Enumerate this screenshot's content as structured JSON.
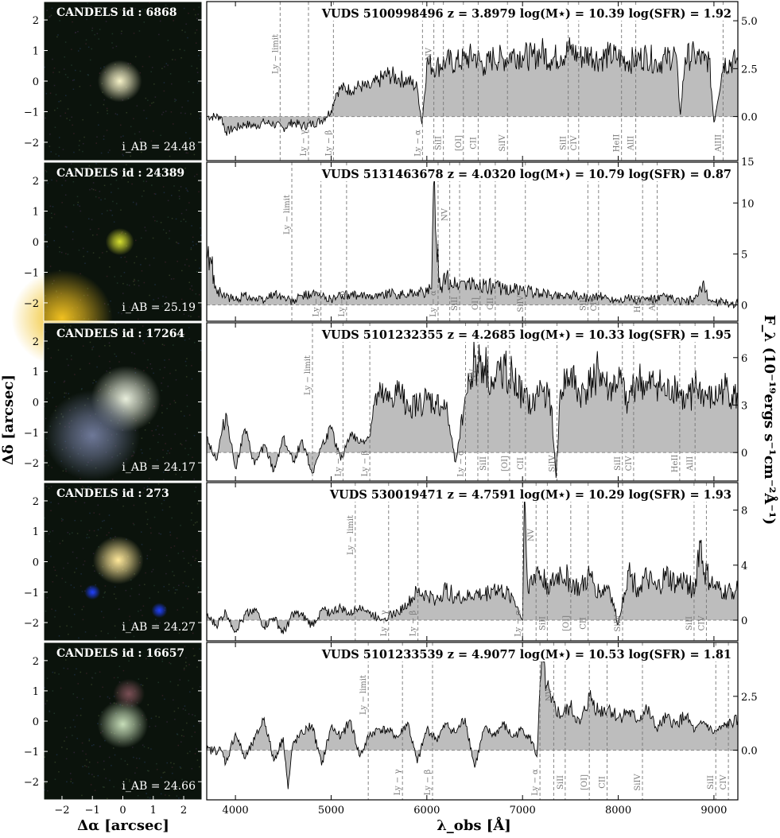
{
  "figure": {
    "image_ylabel": "Δδ [arcsec]",
    "image_xlabel": "Δα [arcsec]",
    "spec_xlabel": "λ_obs [Å]",
    "spec_ylabel": "F_λ (10⁻¹⁹ergs s⁻¹cm⁻²Å⁻¹)",
    "image_ticks": [
      "−2",
      "−1",
      "0",
      "1",
      "2"
    ],
    "spec_xticks": [
      "4000",
      "5000",
      "6000",
      "7000",
      "8000",
      "9000"
    ]
  },
  "chart_data": [
    {
      "type": "line",
      "panel": 1,
      "cutout": {
        "label": "CANDELS id :  6868",
        "mag": "i_AB = 24.48",
        "blobs": [
          {
            "dx": -0.1,
            "dy": 0.0,
            "size": 0.14,
            "color": "#f6f2c8"
          }
        ]
      },
      "title": "VUDS 5100998496  z = 3.8979   log(M⋆) = 10.39   log(SFR) = 1.92",
      "redshift": 3.8979,
      "ylim": [
        -2.3,
        6.0
      ],
      "yticks": [
        0.0,
        2.5,
        5.0
      ],
      "right_tick_top": "15",
      "xlim": [
        3700,
        9250
      ],
      "x": [
        3700,
        3850,
        3900,
        4000,
        4100,
        4200,
        4300,
        4400,
        4500,
        4600,
        4700,
        4800,
        4900,
        5000,
        5050,
        5100,
        5200,
        5300,
        5400,
        5500,
        5600,
        5700,
        5800,
        5900,
        5950,
        6000,
        6100,
        6200,
        6300,
        6400,
        6500,
        6600,
        6700,
        6800,
        6900,
        7000,
        7100,
        7200,
        7300,
        7400,
        7500,
        7600,
        7700,
        7800,
        7900,
        8000,
        8100,
        8200,
        8300,
        8400,
        8500,
        8600,
        8650,
        8700,
        8800,
        8900,
        8950,
        9000,
        9100,
        9250
      ],
      "y": [
        0,
        0,
        -0.8,
        -0.6,
        -0.4,
        -0.5,
        -0.3,
        -0.4,
        -0.6,
        -0.3,
        -0.5,
        -0.4,
        -0.2,
        0.3,
        1.2,
        1.5,
        1.4,
        1.6,
        1.5,
        1.9,
        2.2,
        2.0,
        1.9,
        1.5,
        -0.4,
        2.8,
        2.6,
        2.9,
        2.8,
        3.0,
        3.2,
        2.6,
        3.1,
        3.0,
        3.3,
        3.2,
        3.1,
        3.4,
        3.0,
        3.2,
        3.5,
        3.1,
        3.3,
        3.0,
        3.2,
        3.1,
        2.9,
        3.0,
        3.2,
        2.8,
        3.0,
        3.3,
        0.1,
        3.1,
        3.2,
        2.9,
        3.0,
        -0.3,
        2.8,
        2.9
      ],
      "lines": [
        {
          "label": "Ly − limit",
          "rest": 912,
          "pos": "top"
        },
        {
          "label": "Ly − γ",
          "rest": 972.5,
          "pos": "bottom"
        },
        {
          "label": "Ly − β",
          "rest": 1025.7,
          "pos": "bottom"
        },
        {
          "label": "Ly − α",
          "rest": 1215.7,
          "pos": "bottom"
        },
        {
          "label": "NV",
          "rest": 1240,
          "pos": "top"
        },
        {
          "label": "SiII",
          "rest": 1260.4,
          "pos": "bottom"
        },
        {
          "label": "[OI]",
          "rest": 1303,
          "pos": "bottom"
        },
        {
          "label": "CII",
          "rest": 1334.5,
          "pos": "bottom"
        },
        {
          "label": "SiIV",
          "rest": 1397,
          "pos": "bottom"
        },
        {
          "label": "SiII",
          "rest": 1526.7,
          "pos": "bottom"
        },
        {
          "label": "CIV",
          "rest": 1549,
          "pos": "bottom"
        },
        {
          "label": "HeII",
          "rest": 1640.4,
          "pos": "bottom"
        },
        {
          "label": "AlII",
          "rest": 1670.8,
          "pos": "bottom"
        },
        {
          "label": "AlIII",
          "rest": 1857,
          "pos": "bottom"
        }
      ]
    },
    {
      "type": "line",
      "panel": 2,
      "cutout": {
        "label": "CANDELS id :  24389",
        "mag": "i_AB = 25.19",
        "blobs": [
          {
            "dx": -0.1,
            "dy": 0.0,
            "size": 0.09,
            "color": "#d6df30"
          },
          {
            "dx": -2.0,
            "dy": -2.5,
            "size": 0.32,
            "color": "#f0c020"
          }
        ]
      },
      "title": "VUDS 5131463678  z = 4.0320   log(M⋆) = 10.79   log(SFR) = 0.87",
      "redshift": 4.032,
      "ylim": [
        -1.6,
        14.0
      ],
      "yticks": [
        0,
        5,
        10
      ],
      "xlim": [
        3700,
        9250
      ],
      "x": [
        3700,
        3750,
        3800,
        3900,
        4000,
        4100,
        4200,
        4300,
        4400,
        4500,
        4600,
        4700,
        4800,
        4900,
        5000,
        5100,
        5200,
        5300,
        5400,
        5500,
        5600,
        5700,
        5800,
        5900,
        6000,
        6050,
        6080,
        6100,
        6150,
        6200,
        6300,
        6400,
        6500,
        6600,
        6700,
        6800,
        6900,
        7000,
        7100,
        7200,
        7300,
        7400,
        7500,
        7600,
        7700,
        7800,
        7900,
        8000,
        8100,
        8200,
        8300,
        8400,
        8500,
        8600,
        8700,
        8800,
        8900,
        8950,
        9000,
        9100,
        9250
      ],
      "y": [
        4.5,
        4.0,
        1.5,
        0.8,
        0.5,
        1.0,
        0.6,
        0.4,
        1.2,
        0.7,
        0.3,
        0.9,
        1.1,
        0.8,
        0.6,
        0.9,
        1.0,
        0.8,
        1.0,
        0.9,
        1.2,
        1.0,
        1.1,
        1.3,
        1.2,
        1.6,
        12.5,
        6.0,
        1.8,
        2.5,
        1.9,
        2.2,
        1.8,
        2.0,
        1.7,
        1.6,
        1.5,
        1.4,
        1.3,
        1.1,
        1.0,
        0.9,
        1.0,
        0.8,
        0.7,
        0.9,
        0.6,
        0.5,
        0.7,
        0.4,
        0.6,
        0.5,
        0.8,
        0.4,
        0.3,
        0.6,
        1.8,
        0.5,
        0.3,
        0.2,
        0.1
      ],
      "lines": [
        {
          "label": "Ly − limit",
          "rest": 912,
          "pos": "top"
        },
        {
          "label": "Ly − γ",
          "rest": 972.5,
          "pos": "bottom"
        },
        {
          "label": "Ly − β",
          "rest": 1025.7,
          "pos": "bottom"
        },
        {
          "label": "Ly − α",
          "rest": 1215.7,
          "pos": "bottom"
        },
        {
          "label": "NV",
          "rest": 1240,
          "pos": "top"
        },
        {
          "label": "SiII",
          "rest": 1260.4,
          "pos": "bottom"
        },
        {
          "label": "OI]",
          "rest": 1303,
          "pos": "bottom"
        },
        {
          "label": "CII",
          "rest": 1334.5,
          "pos": "bottom"
        },
        {
          "label": "SiIV",
          "rest": 1397,
          "pos": "bottom"
        },
        {
          "label": "SiII",
          "rest": 1526.7,
          "pos": "bottom"
        },
        {
          "label": "CIV",
          "rest": 1549,
          "pos": "bottom"
        },
        {
          "label": "HeII",
          "rest": 1640.4,
          "pos": "bottom"
        },
        {
          "label": "AlII",
          "rest": 1670.8,
          "pos": "bottom"
        }
      ]
    },
    {
      "type": "line",
      "panel": 3,
      "cutout": {
        "label": "CANDELS id :  17264",
        "mag": "i_AB = 24.17",
        "blobs": [
          {
            "dx": 0.1,
            "dy": 0.1,
            "size": 0.22,
            "color": "#e8eedc"
          },
          {
            "dx": -1.0,
            "dy": -1.1,
            "size": 0.3,
            "color": "#6e7898"
          }
        ]
      },
      "title": "VUDS 5101232355  z = 4.2685   log(M⋆) = 10.33   log(SFR) = 1.95",
      "redshift": 4.2685,
      "ylim": [
        -1.8,
        8.2
      ],
      "yticks": [
        0,
        3,
        6
      ],
      "xlim": [
        3700,
        9250
      ],
      "x": [
        3700,
        3800,
        3900,
        4000,
        4100,
        4200,
        4300,
        4400,
        4500,
        4600,
        4700,
        4800,
        4900,
        5000,
        5100,
        5200,
        5300,
        5400,
        5450,
        5500,
        5600,
        5700,
        5800,
        5900,
        6000,
        6100,
        6200,
        6300,
        6400,
        6450,
        6500,
        6600,
        6700,
        6800,
        6900,
        7000,
        7100,
        7200,
        7300,
        7350,
        7400,
        7500,
        7600,
        7700,
        7800,
        7900,
        8000,
        8100,
        8200,
        8300,
        8400,
        8500,
        8600,
        8700,
        8800,
        8900,
        9000,
        9100,
        9250
      ],
      "y": [
        1.0,
        -0.5,
        2.5,
        -1.0,
        1.5,
        -0.8,
        0.5,
        -1.2,
        1.0,
        -0.6,
        0.8,
        -1.3,
        0.4,
        1.5,
        -0.5,
        1.2,
        0.6,
        1.0,
        3.0,
        3.5,
        3.2,
        3.8,
        3.1,
        2.9,
        3.3,
        3.0,
        2.8,
        -0.6,
        3.5,
        4.5,
        6.0,
        5.5,
        4.0,
        5.8,
        4.5,
        3.5,
        2.8,
        4.2,
        3.0,
        -1.6,
        4.0,
        4.8,
        3.5,
        4.2,
        5.2,
        3.8,
        4.5,
        3.2,
        4.6,
        3.9,
        4.4,
        3.6,
        4.2,
        3.0,
        4.1,
        3.5,
        3.2,
        4.0,
        3.3
      ],
      "lines": [
        {
          "label": "Ly − limit",
          "rest": 912,
          "pos": "top"
        },
        {
          "label": "Ly − γ",
          "rest": 972.5,
          "pos": "bottom"
        },
        {
          "label": "Ly − β",
          "rest": 1025.7,
          "pos": "bottom"
        },
        {
          "label": "Ly − α",
          "rest": 1215.7,
          "pos": "bottom"
        },
        {
          "label": "NV",
          "rest": 1240,
          "pos": "top"
        },
        {
          "label": "SiII",
          "rest": 1260.4,
          "pos": "bottom"
        },
        {
          "label": "[OI]",
          "rest": 1303,
          "pos": "bottom"
        },
        {
          "label": "CII",
          "rest": 1334.5,
          "pos": "bottom"
        },
        {
          "label": "SiIV",
          "rest": 1397,
          "pos": "bottom"
        },
        {
          "label": "SiII",
          "rest": 1526.7,
          "pos": "bottom"
        },
        {
          "label": "CIV",
          "rest": 1549,
          "pos": "bottom"
        },
        {
          "label": "HeII",
          "rest": 1640.4,
          "pos": "bottom"
        },
        {
          "label": "AlII",
          "rest": 1670.8,
          "pos": "bottom"
        }
      ]
    },
    {
      "type": "line",
      "panel": 4,
      "cutout": {
        "label": "CANDELS id :  273",
        "mag": "i_AB = 24.27",
        "blobs": [
          {
            "dx": -0.15,
            "dy": 0.05,
            "size": 0.16,
            "color": "#ffe89a"
          },
          {
            "dx": -1.0,
            "dy": -1.0,
            "size": 0.05,
            "color": "#2040ff"
          },
          {
            "dx": 1.2,
            "dy": -1.6,
            "size": 0.05,
            "color": "#2040ff"
          }
        ]
      },
      "title": "VUDS 530019471    z = 4.7591   log(M⋆) = 10.29   log(SFR) = 1.93",
      "redshift": 4.7591,
      "ylim": [
        -1.5,
        10.0
      ],
      "yticks": [
        0,
        4,
        8
      ],
      "xlim": [
        3700,
        9250
      ],
      "x": [
        3700,
        3800,
        3900,
        4000,
        4100,
        4200,
        4300,
        4400,
        4500,
        4600,
        4700,
        4800,
        4900,
        5000,
        5100,
        5200,
        5300,
        5400,
        5500,
        5600,
        5700,
        5800,
        5900,
        6000,
        6100,
        6200,
        6300,
        6400,
        6500,
        6600,
        6700,
        6800,
        6900,
        7000,
        7020,
        7050,
        7100,
        7150,
        7200,
        7300,
        7400,
        7500,
        7600,
        7700,
        7800,
        7900,
        8000,
        8100,
        8200,
        8300,
        8400,
        8500,
        8600,
        8700,
        8800,
        8850,
        8900,
        9000,
        9100,
        9250
      ],
      "y": [
        0.3,
        -0.4,
        0.6,
        -0.8,
        0.4,
        0.9,
        -0.5,
        0.2,
        -1.0,
        0.5,
        0.3,
        -0.4,
        0.7,
        0.6,
        0.9,
        0.4,
        1.1,
        0.5,
        0.2,
        0.3,
        0.6,
        1.2,
        2.0,
        1.8,
        1.5,
        2.2,
        1.7,
        1.6,
        1.9,
        1.8,
        2.4,
        2.0,
        1.7,
        0.0,
        9.2,
        3.0,
        2.6,
        3.8,
        3.0,
        2.5,
        3.5,
        2.8,
        2.2,
        3.2,
        2.0,
        2.5,
        -0.3,
        3.6,
        2.4,
        3.0,
        2.2,
        3.2,
        2.6,
        2.9,
        2.1,
        5.8,
        3.5,
        2.4,
        2.0,
        2.2
      ],
      "lines": [
        {
          "label": "Ly − limit",
          "rest": 912,
          "pos": "top"
        },
        {
          "label": "Ly − γ",
          "rest": 972.5,
          "pos": "bottom"
        },
        {
          "label": "Ly − β",
          "rest": 1025.7,
          "pos": "bottom"
        },
        {
          "label": "Ly − α",
          "rest": 1215.7,
          "pos": "bottom"
        },
        {
          "label": "NV",
          "rest": 1240,
          "pos": "top"
        },
        {
          "label": "SiII",
          "rest": 1260.4,
          "pos": "bottom"
        },
        {
          "label": "[OI]",
          "rest": 1303,
          "pos": "bottom"
        },
        {
          "label": "CII",
          "rest": 1334.5,
          "pos": "bottom"
        },
        {
          "label": "SiIV",
          "rest": 1397,
          "pos": "bottom"
        },
        {
          "label": "SiII",
          "rest": 1526.7,
          "pos": "bottom"
        },
        {
          "label": "CIV",
          "rest": 1549,
          "pos": "bottom"
        }
      ]
    },
    {
      "type": "line",
      "panel": 5,
      "cutout": {
        "label": "CANDELS id :  16657",
        "mag": "i_AB = 24.66",
        "blobs": [
          {
            "dx": 0.0,
            "dy": -0.1,
            "size": 0.16,
            "color": "#c6ddb8"
          },
          {
            "dx": 0.2,
            "dy": 0.9,
            "size": 0.1,
            "color": "#7a4f55"
          }
        ]
      },
      "title": "VUDS 5101233539  z = 4.9077   log(M⋆) = 10.53   log(SFR) = 1.81",
      "redshift": 4.9077,
      "ylim": [
        -2.3,
        5.0
      ],
      "yticks": [
        0.0,
        2.5
      ],
      "xlim": [
        3700,
        9250
      ],
      "x": [
        3700,
        3850,
        3900,
        4000,
        4100,
        4200,
        4300,
        4400,
        4500,
        4550,
        4600,
        4700,
        4800,
        4900,
        5000,
        5100,
        5200,
        5300,
        5400,
        5500,
        5600,
        5700,
        5800,
        5900,
        6000,
        6100,
        6200,
        6300,
        6400,
        6500,
        6600,
        6700,
        6800,
        6900,
        7000,
        7100,
        7150,
        7200,
        7250,
        7300,
        7400,
        7500,
        7600,
        7700,
        7800,
        7900,
        8000,
        8100,
        8200,
        8300,
        8400,
        8500,
        8600,
        8700,
        8800,
        8900,
        9000,
        9100,
        9250
      ],
      "y": [
        0,
        0,
        -0.6,
        0.8,
        -0.4,
        0.5,
        1.5,
        -0.5,
        0.6,
        -1.8,
        0.3,
        0.8,
        1.2,
        -0.7,
        1.1,
        0.6,
        1.4,
        -0.3,
        0.7,
        1.0,
        0.9,
        0.6,
        1.3,
        -0.6,
        1.0,
        0.5,
        1.2,
        0.8,
        1.5,
        -0.8,
        1.0,
        0.7,
        1.2,
        0.6,
        1.0,
        0.4,
        -0.3,
        4.2,
        3.0,
        2.2,
        1.6,
        2.0,
        1.2,
        2.5,
        1.8,
        2.0,
        1.5,
        1.8,
        1.4,
        1.9,
        1.0,
        1.5,
        1.2,
        1.6,
        0.9,
        1.3,
        0.8,
        1.1,
        1.4
      ],
      "lines": [
        {
          "label": "Ly − limit",
          "rest": 912,
          "pos": "top"
        },
        {
          "label": "Ly − γ",
          "rest": 972.5,
          "pos": "bottom"
        },
        {
          "label": "Ly − β",
          "rest": 1025.7,
          "pos": "bottom"
        },
        {
          "label": "Ly − α",
          "rest": 1215.7,
          "pos": "bottom"
        },
        {
          "label": "NV",
          "rest": 1240,
          "pos": "top"
        },
        {
          "label": "SiII",
          "rest": 1260.4,
          "pos": "bottom"
        },
        {
          "label": "[OI]",
          "rest": 1303,
          "pos": "bottom"
        },
        {
          "label": "CII",
          "rest": 1334.5,
          "pos": "bottom"
        },
        {
          "label": "SiIV",
          "rest": 1397,
          "pos": "bottom"
        },
        {
          "label": "SiII",
          "rest": 1526.7,
          "pos": "bottom"
        },
        {
          "label": "CIV",
          "rest": 1549,
          "pos": "bottom"
        }
      ]
    }
  ]
}
